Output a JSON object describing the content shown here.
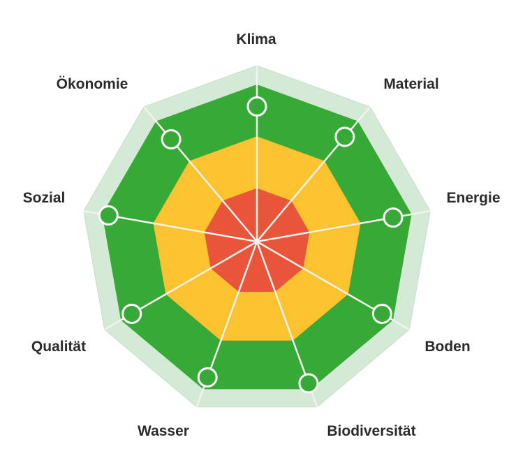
{
  "chart_data": {
    "type": "radar",
    "axes": [
      "Klima",
      "Material",
      "Energie",
      "Boden",
      "Biodiversität",
      "Wasser",
      "Qualität",
      "Sozial",
      "Ökonomie"
    ],
    "title": "",
    "series": [
      {
        "values": [
          0.86,
          0.87,
          0.88,
          0.92,
          0.96,
          0.92,
          0.92,
          0.96,
          0.85
        ]
      }
    ],
    "bands": [
      {
        "from": 0.0,
        "to": 0.34,
        "color": "#e8553a"
      },
      {
        "from": 0.34,
        "to": 0.67,
        "color": "#fbc330"
      },
      {
        "from": 0.67,
        "to": 1.0,
        "color": "#37a937"
      },
      {
        "from": 1.0,
        "to": 1.12,
        "color": "#d4ead6"
      }
    ],
    "colors": {
      "spoke": "#f4f2ee",
      "marker_fill": "#37a937",
      "marker_stroke": "#ffffff"
    }
  }
}
